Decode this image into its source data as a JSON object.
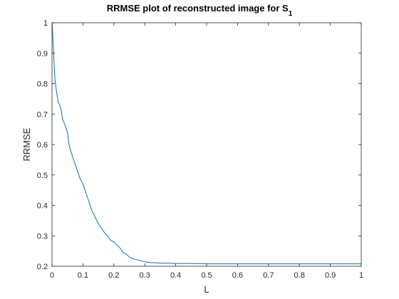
{
  "chart_data": {
    "type": "line",
    "title_main": "RRMSE plot of reconstructed image for S",
    "title_subscript": "1",
    "xlabel": "L",
    "ylabel": "RRMSE",
    "xlim": [
      0,
      1
    ],
    "ylim": [
      0.2,
      1
    ],
    "xticks": [
      "0",
      "0.1",
      "0.2",
      "0.3",
      "0.4",
      "0.5",
      "0.6",
      "0.7",
      "0.8",
      "0.9",
      "1"
    ],
    "xtick_values": [
      0,
      0.1,
      0.2,
      0.3,
      0.4,
      0.5,
      0.6,
      0.7,
      0.8,
      0.9,
      1
    ],
    "yticks": [
      "0.2",
      "0.3",
      "0.4",
      "0.5",
      "0.6",
      "0.7",
      "0.8",
      "0.9",
      "1"
    ],
    "ytick_values": [
      0.2,
      0.3,
      0.4,
      0.5,
      0.6,
      0.7,
      0.8,
      0.9,
      1
    ],
    "grid": false,
    "series": [
      {
        "color": "#0072BD",
        "x": [
          0,
          0.003,
          0.006,
          0.01,
          0.015,
          0.02,
          0.025,
          0.03,
          0.035,
          0.04,
          0.05,
          0.055,
          0.06,
          0.07,
          0.08,
          0.09,
          0.1,
          0.11,
          0.12,
          0.13,
          0.14,
          0.15,
          0.16,
          0.17,
          0.18,
          0.19,
          0.2,
          0.21,
          0.22,
          0.23,
          0.24,
          0.25,
          0.26,
          0.28,
          0.3,
          0.32,
          0.34,
          0.36,
          0.38,
          0.4,
          0.45,
          0.5,
          0.6,
          0.7,
          0.8,
          0.9,
          1.0
        ],
        "y": [
          1.0,
          0.95,
          0.88,
          0.81,
          0.77,
          0.74,
          0.73,
          0.71,
          0.68,
          0.67,
          0.64,
          0.6,
          0.58,
          0.55,
          0.52,
          0.49,
          0.47,
          0.44,
          0.41,
          0.38,
          0.36,
          0.34,
          0.325,
          0.31,
          0.3,
          0.285,
          0.28,
          0.27,
          0.26,
          0.245,
          0.24,
          0.23,
          0.225,
          0.22,
          0.215,
          0.212,
          0.211,
          0.21,
          0.21,
          0.209,
          0.209,
          0.208,
          0.208,
          0.208,
          0.208,
          0.208,
          0.208
        ]
      }
    ]
  }
}
